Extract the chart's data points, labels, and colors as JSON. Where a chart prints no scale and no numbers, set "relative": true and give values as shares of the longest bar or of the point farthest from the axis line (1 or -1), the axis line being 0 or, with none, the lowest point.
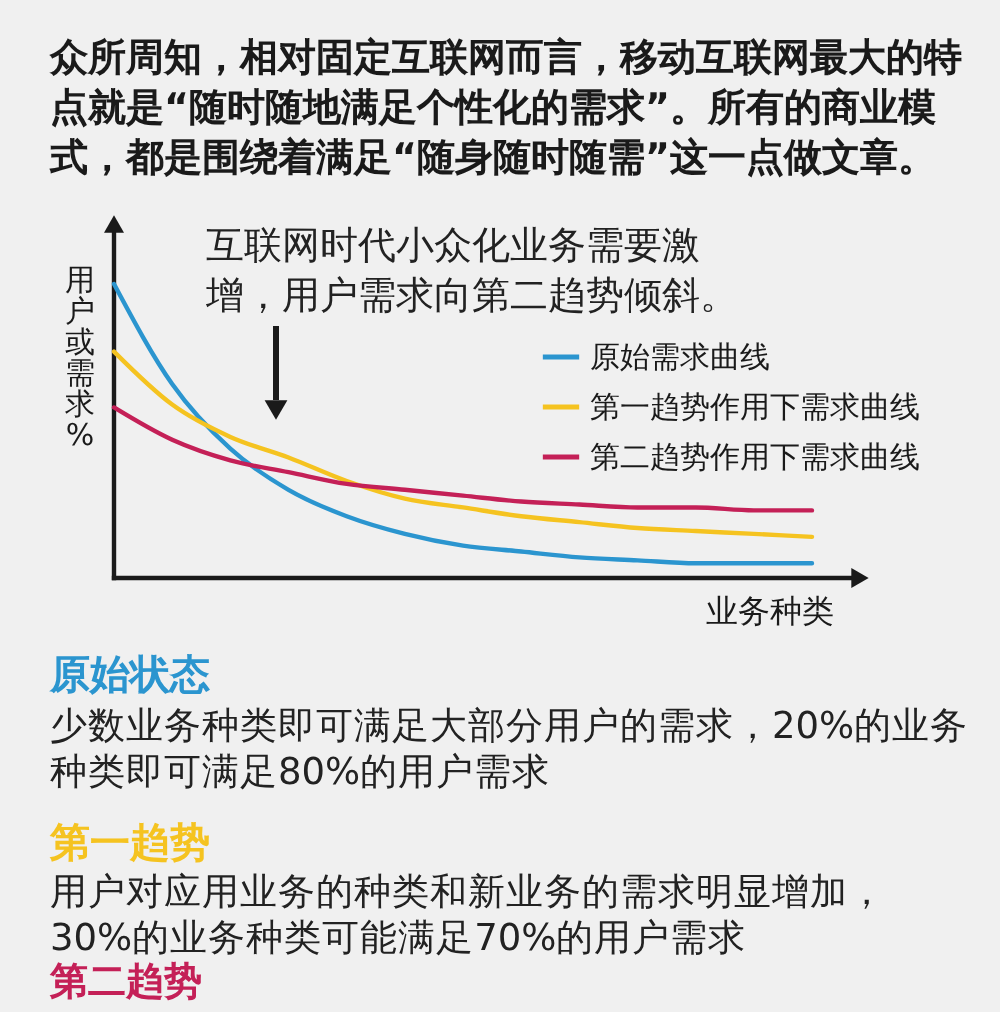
{
  "chart_data": {
    "type": "line",
    "relative": true,
    "title": "众所周知，相对固定互联网而言，移动互联网最大的特点就是“随时随地满足个性化的需求”。所有的商业模式，都是围绕着满足“随身随时随需”这一点做文章。",
    "xlabel": "业务种类",
    "ylabel": "用户或需求%",
    "categories": [
      null,
      null,
      null,
      null,
      null,
      null,
      null,
      null,
      null,
      null,
      null,
      null,
      null
    ],
    "series": [
      {
        "name": "原始需求曲线",
        "color": "#2b95cf",
        "values": [
          1.0,
          0.66,
          0.44,
          0.3,
          0.21,
          0.15,
          0.11,
          0.09,
          0.07,
          0.06,
          0.05,
          0.05,
          0.05
        ]
      },
      {
        "name": "第一趋势作用下需求曲线",
        "color": "#f5c320",
        "values": [
          0.77,
          0.59,
          0.48,
          0.41,
          0.33,
          0.27,
          0.24,
          0.21,
          0.19,
          0.17,
          0.16,
          0.15,
          0.14
        ]
      },
      {
        "name": "第二趋势作用下需求曲线",
        "color": "#c42057",
        "values": [
          0.58,
          0.47,
          0.4,
          0.36,
          0.32,
          0.3,
          0.28,
          0.26,
          0.25,
          0.24,
          0.24,
          0.23,
          0.23
        ]
      }
    ],
    "legend": "top right",
    "annotations": [
      "互联网时代小众化业务需要激增，用户需求向第二趋势倾斜。",
      "原始状态",
      "少数业务种类即可满足大部分用户的需求，20%的业务种类即可满足80%的用户需求",
      "第一趋势",
      "用户对应用业务的种类和新业务的需求明显增加，30%的业务种类可能满足70%的用户需求",
      "第二趋势"
    ]
  }
}
